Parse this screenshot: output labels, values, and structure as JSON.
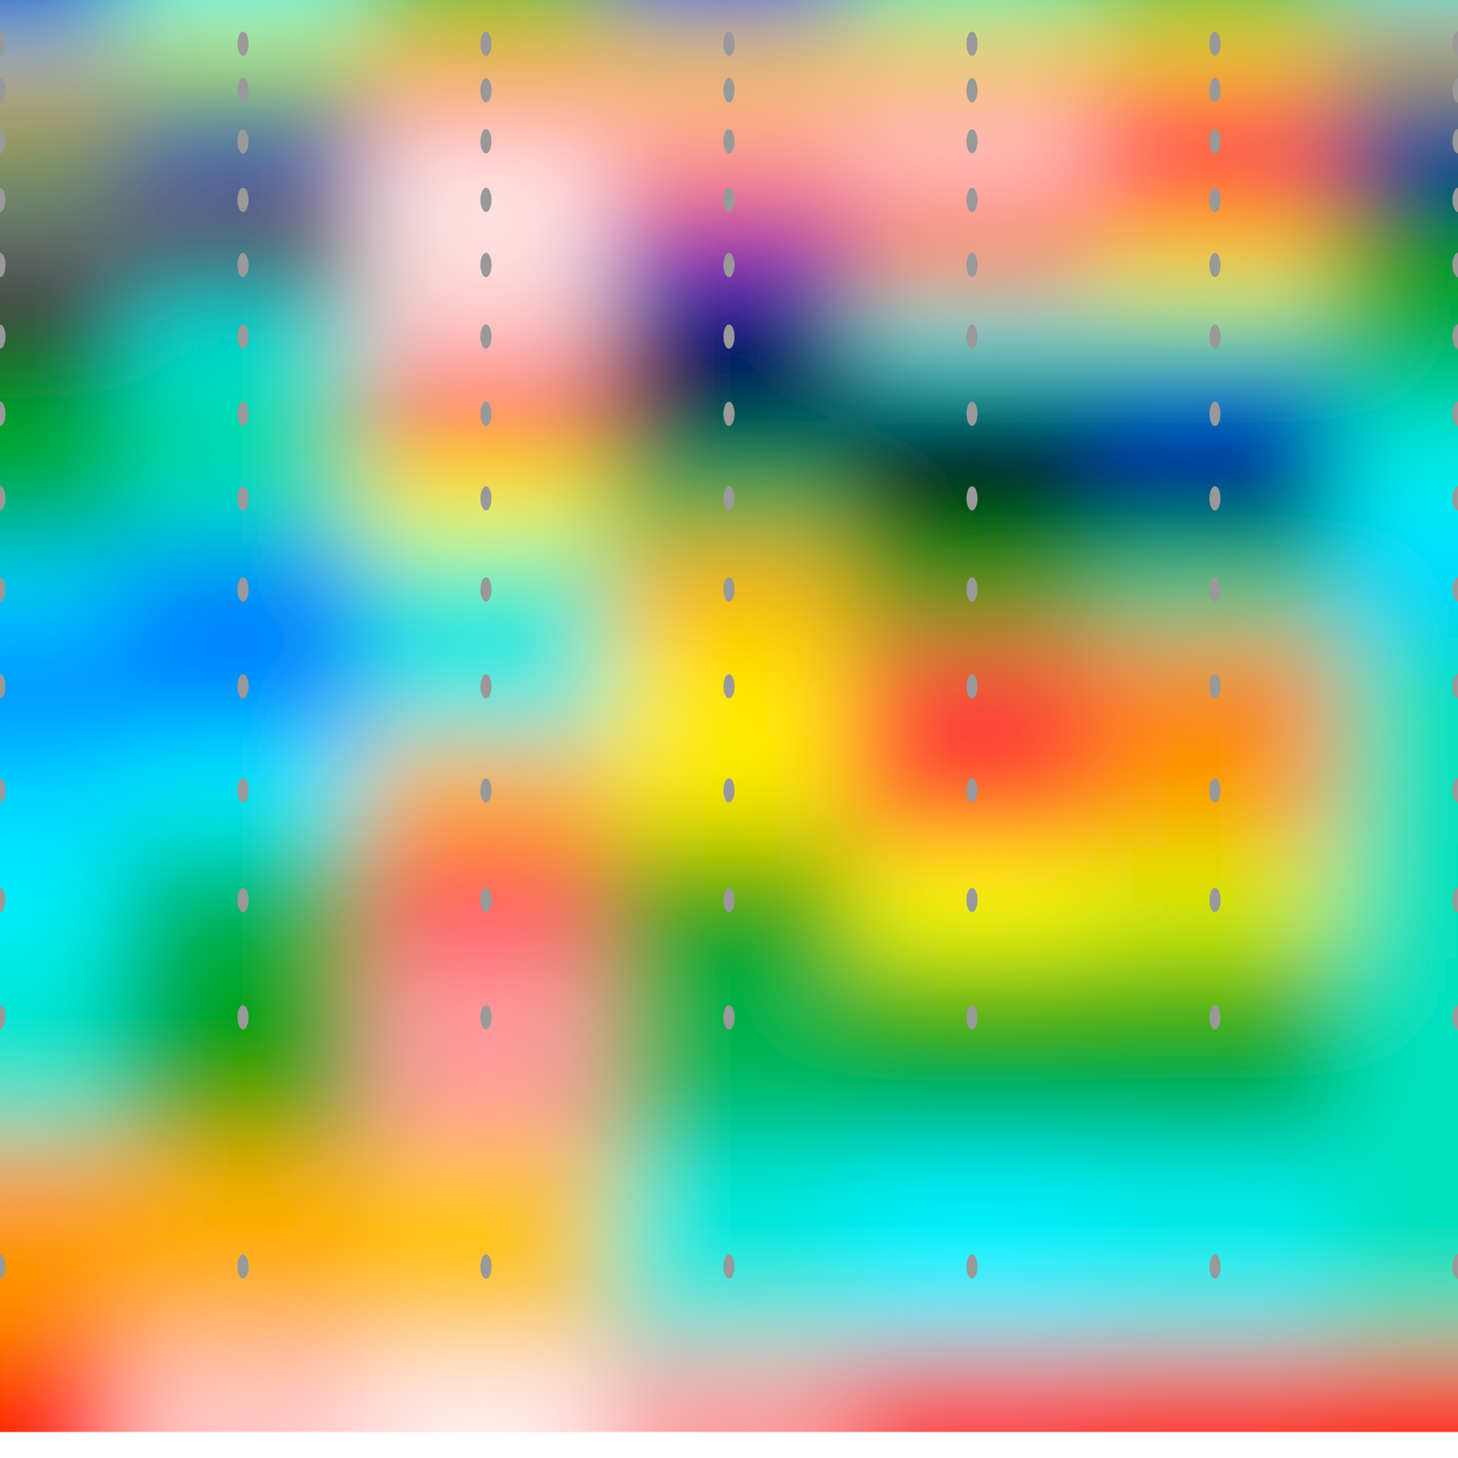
{
  "chart_data": {
    "type": "contour",
    "x": [
      0,
      1,
      2,
      3,
      4,
      5,
      6
    ],
    "y": [
      0,
      47,
      97,
      152,
      215,
      285,
      362,
      445,
      536,
      634,
      738,
      850,
      968,
      1094,
      1362,
      1540
    ],
    "xlim": [
      0,
      6
    ],
    "ylim": [
      0,
      1540
    ],
    "zlim": [
      0,
      100
    ],
    "tick_labels": false,
    "cells": [
      [
        22,
        38,
        50,
        24,
        44,
        50,
        40
      ],
      [
        40,
        68,
        70,
        66,
        68,
        68,
        82
      ],
      [
        82,
        52,
        86,
        80,
        86,
        86,
        55
      ],
      [
        50,
        22,
        98,
        97,
        99,
        93,
        22
      ],
      [
        3,
        3,
        99,
        88,
        94,
        86,
        12
      ],
      [
        5,
        14,
        98,
        24,
        80,
        70,
        52
      ],
      [
        10,
        38,
        97,
        11,
        38,
        45,
        56
      ],
      [
        52,
        46,
        88,
        16,
        13,
        22,
        44
      ],
      [
        54,
        44,
        68,
        50,
        11,
        15,
        36
      ],
      [
        34,
        28,
        42,
        76,
        54,
        46,
        34
      ],
      [
        28,
        28,
        38,
        70,
        90,
        80,
        44
      ],
      [
        34,
        36,
        76,
        70,
        89,
        78,
        44
      ],
      [
        36,
        50,
        92,
        56,
        68,
        66,
        44
      ],
      [
        42,
        56,
        95,
        50,
        54,
        54,
        44
      ],
      [
        78,
        76,
        74,
        40,
        36,
        38,
        44
      ],
      [
        86,
        97,
        99,
        95,
        90,
        88,
        86
      ]
    ]
  }
}
